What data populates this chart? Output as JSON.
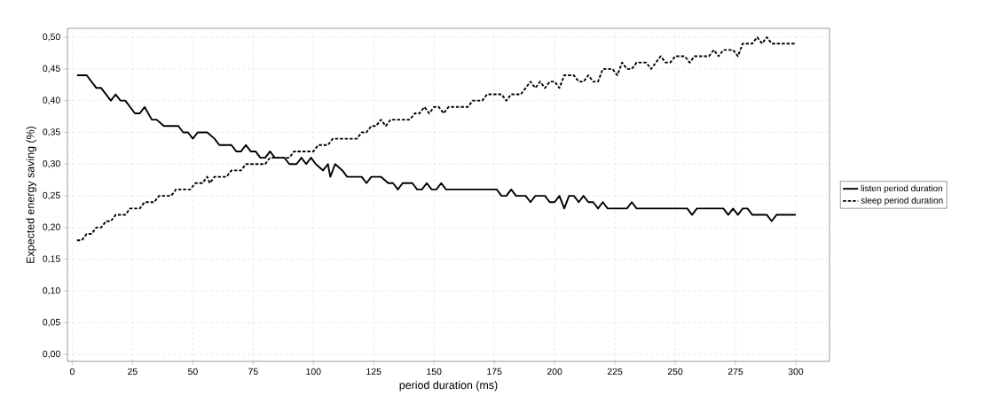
{
  "chart_data": {
    "type": "line",
    "xlabel": "period duration (ms)",
    "ylabel": "Expected energy saving (%)",
    "xlim": [
      -2,
      314
    ],
    "ylim": [
      -0.011,
      0.514
    ],
    "xticks": [
      0,
      25,
      50,
      75,
      100,
      125,
      150,
      175,
      200,
      225,
      250,
      275,
      300
    ],
    "yticks": [
      {
        "value": 0,
        "label": "0,00"
      },
      {
        "value": 0.05,
        "label": "0,05"
      },
      {
        "value": 0.1,
        "label": "0,10"
      },
      {
        "value": 0.15,
        "label": "0,15"
      },
      {
        "value": 0.2,
        "label": "0,20"
      },
      {
        "value": 0.25,
        "label": "0,25"
      },
      {
        "value": 0.3,
        "label": "0,30"
      },
      {
        "value": 0.35,
        "label": "0,35"
      },
      {
        "value": 0.4,
        "label": "0,40"
      },
      {
        "value": 0.45,
        "label": "0,45"
      },
      {
        "value": 0.5,
        "label": "0,50"
      }
    ],
    "grid": true,
    "legend": "right",
    "marker": "none",
    "series": [
      {
        "name": "listen period duration",
        "color": "#000000",
        "line_style": "solid",
        "x": [
          2,
          6,
          10,
          12,
          16,
          18,
          20,
          22,
          26,
          28,
          30,
          33,
          35,
          38,
          44,
          46,
          48,
          50,
          52,
          56,
          59,
          61,
          66,
          68,
          70,
          72,
          74,
          76,
          78,
          80,
          82,
          84,
          88,
          90,
          93,
          95,
          97,
          99,
          101,
          104,
          106,
          107,
          109,
          112,
          114,
          120,
          122,
          124,
          128,
          131,
          133,
          135,
          137,
          141,
          143,
          145,
          147,
          149,
          151,
          153,
          155,
          176,
          178,
          180,
          182,
          184,
          188,
          190,
          192,
          196,
          198,
          200,
          202,
          204,
          206,
          208,
          210,
          212,
          214,
          216,
          218,
          220,
          222,
          230,
          232,
          234,
          255,
          257,
          259,
          270,
          272,
          274,
          276,
          278,
          280,
          282,
          288,
          290,
          292,
          300
        ],
        "values": [
          0.44,
          0.44,
          0.42,
          0.42,
          0.4,
          0.41,
          0.4,
          0.4,
          0.38,
          0.38,
          0.39,
          0.37,
          0.37,
          0.36,
          0.36,
          0.35,
          0.35,
          0.34,
          0.35,
          0.35,
          0.34,
          0.33,
          0.33,
          0.32,
          0.32,
          0.33,
          0.32,
          0.32,
          0.31,
          0.31,
          0.32,
          0.31,
          0.31,
          0.3,
          0.3,
          0.31,
          0.3,
          0.31,
          0.3,
          0.29,
          0.3,
          0.28,
          0.3,
          0.29,
          0.28,
          0.28,
          0.27,
          0.28,
          0.28,
          0.27,
          0.27,
          0.26,
          0.27,
          0.27,
          0.26,
          0.26,
          0.27,
          0.26,
          0.26,
          0.27,
          0.26,
          0.26,
          0.25,
          0.25,
          0.26,
          0.25,
          0.25,
          0.24,
          0.25,
          0.25,
          0.24,
          0.24,
          0.25,
          0.23,
          0.25,
          0.25,
          0.24,
          0.25,
          0.24,
          0.24,
          0.23,
          0.24,
          0.23,
          0.23,
          0.24,
          0.23,
          0.23,
          0.22,
          0.23,
          0.23,
          0.22,
          0.23,
          0.22,
          0.23,
          0.23,
          0.22,
          0.22,
          0.21,
          0.22,
          0.22
        ]
      },
      {
        "name": "sleep period duration",
        "color": "#000000",
        "line_style": "dashed",
        "x": [
          2,
          4,
          6,
          8,
          10,
          12,
          14,
          16,
          18,
          22,
          24,
          28,
          30,
          34,
          36,
          41,
          43,
          49,
          51,
          54,
          56,
          57,
          59,
          64,
          66,
          70,
          72,
          80,
          82,
          90,
          92,
          100,
          102,
          106,
          108,
          118,
          120,
          122,
          124,
          126,
          128,
          130,
          132,
          140,
          142,
          144,
          146,
          148,
          150,
          152,
          154,
          156,
          164,
          166,
          170,
          172,
          178,
          180,
          182,
          186,
          188,
          190,
          192,
          194,
          196,
          198,
          200,
          202,
          204,
          208,
          210,
          212,
          214,
          216,
          218,
          220,
          224,
          226,
          228,
          230,
          232,
          234,
          238,
          240,
          242,
          244,
          246,
          248,
          250,
          254,
          256,
          258,
          264,
          266,
          268,
          270,
          274,
          276,
          278,
          282,
          284,
          286,
          288,
          290,
          300
        ],
        "values": [
          0.18,
          0.18,
          0.19,
          0.19,
          0.2,
          0.2,
          0.21,
          0.21,
          0.22,
          0.22,
          0.23,
          0.23,
          0.24,
          0.24,
          0.25,
          0.25,
          0.26,
          0.26,
          0.27,
          0.27,
          0.28,
          0.27,
          0.28,
          0.28,
          0.29,
          0.29,
          0.3,
          0.3,
          0.31,
          0.31,
          0.32,
          0.32,
          0.33,
          0.33,
          0.34,
          0.34,
          0.35,
          0.35,
          0.36,
          0.36,
          0.37,
          0.36,
          0.37,
          0.37,
          0.38,
          0.38,
          0.39,
          0.38,
          0.39,
          0.39,
          0.38,
          0.39,
          0.39,
          0.4,
          0.4,
          0.41,
          0.41,
          0.4,
          0.41,
          0.41,
          0.42,
          0.43,
          0.42,
          0.43,
          0.42,
          0.43,
          0.43,
          0.42,
          0.44,
          0.44,
          0.43,
          0.43,
          0.44,
          0.43,
          0.43,
          0.45,
          0.45,
          0.44,
          0.46,
          0.45,
          0.45,
          0.46,
          0.46,
          0.45,
          0.46,
          0.47,
          0.46,
          0.46,
          0.47,
          0.47,
          0.46,
          0.47,
          0.47,
          0.48,
          0.47,
          0.48,
          0.48,
          0.47,
          0.49,
          0.49,
          0.5,
          0.49,
          0.5,
          0.49,
          0.49
        ]
      }
    ]
  }
}
